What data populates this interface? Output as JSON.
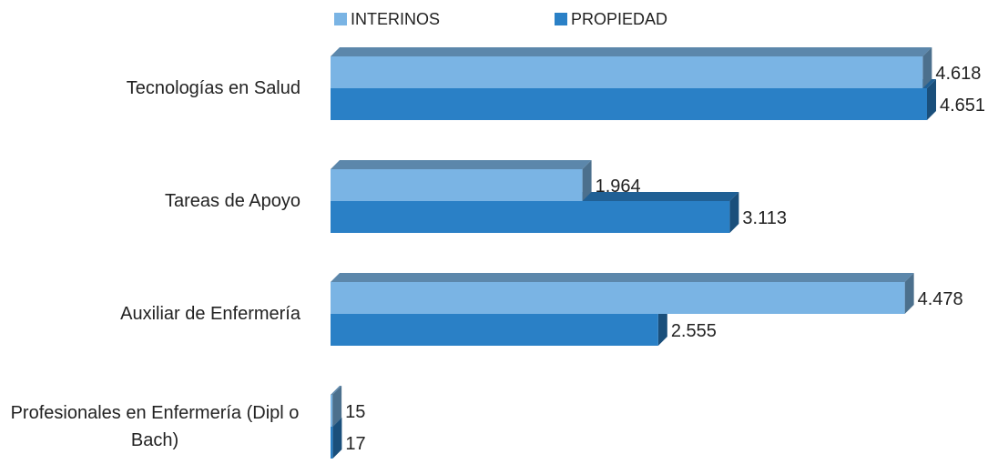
{
  "chart_data": {
    "type": "bar3d_horizontal",
    "categories": [
      "Tecnologías en Salud",
      "Tareas de  Apoyo",
      "Auxiliar  de Enfermería",
      "Profesionales en Enfermería (Dipl o Bach)"
    ],
    "series": [
      {
        "name": "INTERINOS",
        "color": "#7ab4e4",
        "values": [
          4618,
          1964,
          4478,
          15
        ],
        "value_labels": [
          "4.618",
          "1.964",
          "4.478",
          "15"
        ]
      },
      {
        "name": "PROPIEDAD",
        "color": "#2a80c6",
        "values": [
          4651,
          3113,
          2555,
          17
        ],
        "value_labels": [
          "4.651",
          "3.113",
          "2.555",
          "17"
        ]
      }
    ]
  }
}
